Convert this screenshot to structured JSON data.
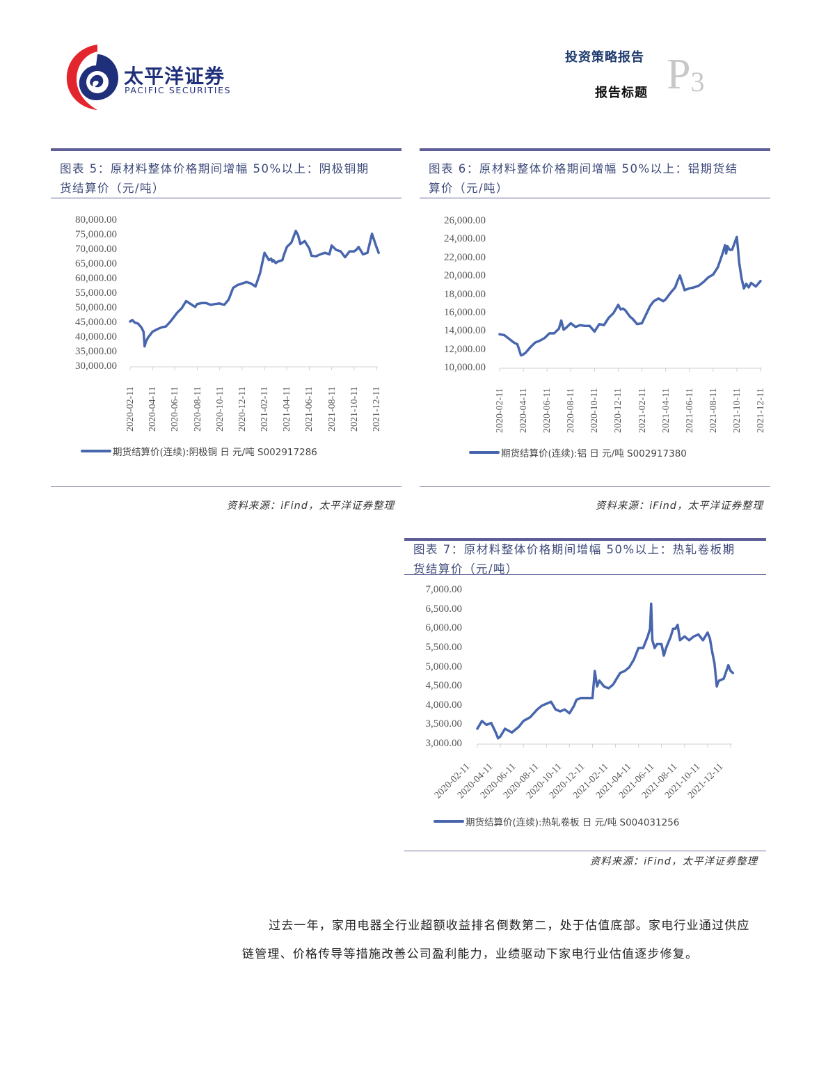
{
  "header": {
    "logo_cn": "太平洋证券",
    "logo_en": "PACIFIC SECURITIES",
    "report_type": "投资策略报告",
    "report_title": "报告标题",
    "page_prefix": "P",
    "page_number": "3"
  },
  "colors": {
    "line": "#4866ad",
    "rule": "#5e5f96",
    "title_text": "#3d4a7a",
    "logo_red": "#e3262e",
    "logo_blue": "#1f2f7a",
    "page_grey": "#c8c8c8"
  },
  "figures": [
    {
      "title_line1": "图表 5：原材料整体价格期间增幅 50%以上：阴极铜期",
      "title_line2": "货结算价（元/吨）",
      "legend": "期货结算价(连续):阴极铜  日  元/吨  S002917286",
      "source": "资料来源：iFind，太平洋证券整理"
    },
    {
      "title_line1": "图表 6：原材料整体价格期间增幅 50%以上：铝期货结",
      "title_line2": "算价（元/吨）",
      "legend": "期货结算价(连续):铝  日  元/吨  S002917380",
      "source": "资料来源：iFind，太平洋证券整理"
    },
    {
      "title_line1": "图表 7：原材料整体价格期间增幅 50%以上：热轧卷板期",
      "title_line2": "货结算价（元/吨）",
      "legend": "期货结算价(连续):热轧卷板  日  元/吨  S004031256",
      "source": "资料来源：iFind，太平洋证券整理"
    }
  ],
  "body_text": "过去一年，家用电器全行业超额收益排名倒数第二，处于估值底部。家电行业通过供应链管理、价格传导等措施改善公司盈利能力，业绩驱动下家电行业估值逐步修复。",
  "chart_data": [
    {
      "type": "line",
      "title": "图表 5：原材料整体价格期间增幅 50%以上：阴极铜期货结算价（元/吨）",
      "xlabel": "",
      "ylabel": "元/吨",
      "legend_position": "bottom",
      "grid": false,
      "ylim": [
        30000,
        80000
      ],
      "yticks": [
        "80,000.00",
        "75,000.00",
        "70,000.00",
        "65,000.00",
        "60,000.00",
        "55,000.00",
        "50,000.00",
        "45,000.00",
        "40,000.00",
        "35,000.00",
        "30,000.00"
      ],
      "xticks": [
        "2020-02-11",
        "2020-04-11",
        "2020-06-11",
        "2020-08-11",
        "2020-10-11",
        "2020-12-11",
        "2021-02-11",
        "2021-04-11",
        "2021-06-11",
        "2021-08-11",
        "2021-10-11",
        "2021-12-11"
      ],
      "series": [
        {
          "name": "期货结算价(连续):阴极铜 日 元/吨 S002917286",
          "x": [
            0,
            0.1,
            0.2,
            0.35,
            0.5,
            0.6,
            0.65,
            0.7,
            0.8,
            1.0,
            1.2,
            1.4,
            1.6,
            1.8,
            2.0,
            2.1,
            2.3,
            2.5,
            2.7,
            2.9,
            3.0,
            3.2,
            3.4,
            3.6,
            3.8,
            4.0,
            4.2,
            4.4,
            4.6,
            4.8,
            5.0,
            5.2,
            5.4,
            5.6,
            5.8,
            6.0,
            6.2,
            6.3,
            6.35,
            6.4,
            6.5,
            6.6,
            6.8,
            6.9,
            7.0,
            7.2,
            7.4,
            7.5,
            7.6,
            7.8,
            8.0,
            8.1,
            8.3,
            8.5,
            8.7,
            8.9,
            9.0,
            9.2,
            9.4,
            9.6,
            9.8,
            10.0,
            10.1,
            10.2,
            10.4,
            10.6,
            10.8,
            11.0,
            11.1
          ],
          "values": [
            45500,
            46000,
            45200,
            44800,
            43500,
            42000,
            37000,
            38500,
            40000,
            42000,
            42800,
            43500,
            43800,
            45500,
            47500,
            48500,
            50000,
            52500,
            51500,
            50500,
            51500,
            51800,
            51800,
            51200,
            51500,
            51700,
            51200,
            53000,
            57000,
            58000,
            58500,
            59000,
            58500,
            57500,
            62000,
            69000,
            66500,
            67000,
            66000,
            66500,
            65500,
            66000,
            66500,
            69000,
            71000,
            72500,
            76500,
            75000,
            72000,
            73000,
            70500,
            68000,
            67800,
            68500,
            69000,
            68500,
            71500,
            70000,
            69500,
            67500,
            69500,
            69500,
            70000,
            71000,
            68500,
            69000,
            75500,
            71000,
            69000
          ]
        }
      ]
    },
    {
      "type": "line",
      "title": "图表 6：原材料整体价格期间增幅 50%以上：铝期货结算价（元/吨）",
      "xlabel": "",
      "ylabel": "元/吨",
      "legend_position": "bottom",
      "grid": false,
      "ylim": [
        10000,
        26000
      ],
      "yticks": [
        "26,000.00",
        "24,000.00",
        "22,000.00",
        "20,000.00",
        "18,000.00",
        "16,000.00",
        "14,000.00",
        "12,000.00",
        "10,000.00"
      ],
      "xticks": [
        "2020-02-11",
        "2020-04-11",
        "2020-06-11",
        "2020-08-11",
        "2020-10-11",
        "2020-12-11",
        "2021-02-11",
        "2021-04-11",
        "2021-06-11",
        "2021-08-11",
        "2021-10-11",
        "2021-12-11"
      ],
      "series": [
        {
          "name": "期货结算价(连续):铝 日 元/吨 S002917380",
          "x": [
            0,
            0.2,
            0.4,
            0.6,
            0.75,
            0.9,
            1.0,
            1.1,
            1.3,
            1.5,
            1.7,
            1.9,
            2.1,
            2.3,
            2.5,
            2.6,
            2.7,
            2.8,
            3.0,
            3.2,
            3.4,
            3.6,
            3.8,
            4.0,
            4.2,
            4.4,
            4.6,
            4.8,
            5.0,
            5.1,
            5.2,
            5.3,
            5.5,
            5.6,
            5.8,
            6.0,
            6.2,
            6.35,
            6.5,
            6.7,
            6.9,
            7.0,
            7.2,
            7.4,
            7.5,
            7.6,
            7.8,
            8.0,
            8.2,
            8.4,
            8.6,
            8.8,
            9.0,
            9.2,
            9.4,
            9.5,
            9.55,
            9.6,
            9.7,
            9.8,
            10.0,
            10.05,
            10.1,
            10.2,
            10.3,
            10.4,
            10.5,
            10.6,
            10.8,
            11.0
          ],
          "values": [
            13700,
            13600,
            13200,
            12800,
            12600,
            11400,
            11500,
            11700,
            12300,
            12800,
            13000,
            13300,
            13800,
            13800,
            14300,
            15200,
            14200,
            14400,
            14900,
            14500,
            14700,
            14600,
            14600,
            14000,
            14800,
            14700,
            15500,
            16000,
            16900,
            16400,
            16500,
            16300,
            15600,
            15400,
            14800,
            14900,
            16000,
            16800,
            17300,
            17600,
            17300,
            17500,
            18200,
            18800,
            19500,
            20100,
            18500,
            18700,
            18800,
            19000,
            19400,
            19900,
            20200,
            21000,
            22500,
            23400,
            22500,
            23300,
            22900,
            22900,
            24300,
            23000,
            21500,
            19800,
            18700,
            19200,
            18800,
            19300,
            18900,
            19500
          ]
        }
      ]
    },
    {
      "type": "line",
      "title": "图表 7：原材料整体价格期间增幅 50%以上：热轧卷板期货结算价（元/吨）",
      "xlabel": "",
      "ylabel": "元/吨",
      "legend_position": "bottom",
      "grid": false,
      "ylim": [
        3000,
        7000
      ],
      "yticks": [
        "7,000.00",
        "6,500.00",
        "6,000.00",
        "5,500.00",
        "5,000.00",
        "4,500.00",
        "4,000.00",
        "3,500.00",
        "3,000.00"
      ],
      "xticks": [
        "2020-02-11",
        "2020-04-11",
        "2020-06-11",
        "2020-08-11",
        "2020-10-11",
        "2020-12-11",
        "2021-02-11",
        "2021-04-11",
        "2021-06-11",
        "2021-08-11",
        "2021-10-11",
        "2021-12-11"
      ],
      "series": [
        {
          "name": "期货结算价(连续):热轧卷板 日 元/吨 S004031256",
          "x": [
            0,
            0.2,
            0.4,
            0.6,
            0.8,
            0.9,
            1.0,
            1.2,
            1.5,
            1.8,
            2.0,
            2.3,
            2.6,
            2.8,
            3.0,
            3.2,
            3.4,
            3.6,
            3.8,
            4.0,
            4.2,
            4.3,
            4.5,
            4.7,
            5.0,
            5.1,
            5.2,
            5.3,
            5.5,
            5.7,
            5.9,
            6.0,
            6.2,
            6.4,
            6.6,
            6.8,
            7.0,
            7.2,
            7.4,
            7.5,
            7.55,
            7.6,
            7.7,
            7.8,
            8.0,
            8.1,
            8.2,
            8.4,
            8.5,
            8.6,
            8.7,
            8.8,
            9.0,
            9.2,
            9.4,
            9.6,
            9.8,
            10.0,
            10.1,
            10.2,
            10.3,
            10.4,
            10.45,
            10.5,
            10.7,
            10.9,
            11.0,
            11.1
          ],
          "values": [
            3400,
            3600,
            3500,
            3550,
            3300,
            3150,
            3200,
            3400,
            3300,
            3450,
            3600,
            3700,
            3900,
            4000,
            4050,
            4100,
            3900,
            3850,
            3900,
            3800,
            4000,
            4150,
            4200,
            4200,
            4200,
            4900,
            4500,
            4650,
            4500,
            4450,
            4550,
            4650,
            4850,
            4900,
            5000,
            5200,
            5500,
            5500,
            5800,
            6000,
            6650,
            5700,
            5500,
            5600,
            5600,
            5300,
            5500,
            5800,
            6000,
            6000,
            6100,
            5700,
            5800,
            5700,
            5800,
            5850,
            5700,
            5900,
            5750,
            5400,
            5100,
            4500,
            4600,
            4650,
            4700,
            5050,
            4900,
            4850
          ]
        }
      ]
    }
  ]
}
